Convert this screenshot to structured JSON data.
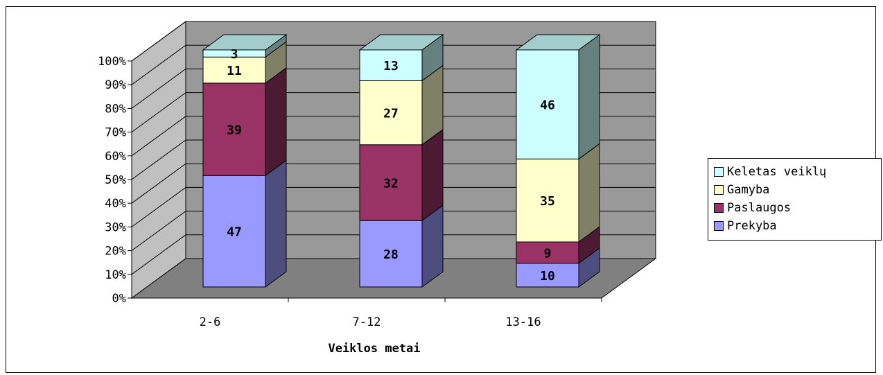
{
  "chart_data": {
    "type": "bar",
    "stacked": true,
    "percent_stacked": true,
    "three_d": true,
    "categories": [
      "2-6",
      "7-12",
      "13-16"
    ],
    "series": [
      {
        "name": "Prekyba",
        "values": [
          47,
          28,
          10
        ],
        "color": "#9999FF"
      },
      {
        "name": "Paslaugos",
        "values": [
          39,
          32,
          9
        ],
        "color": "#993366"
      },
      {
        "name": "Gamyba",
        "values": [
          11,
          27,
          35
        ],
        "color": "#FFFFCC"
      },
      {
        "name": "Keletas veiklų",
        "values": [
          3,
          13,
          46
        ],
        "color": "#CCFFFF"
      }
    ],
    "title": "",
    "xlabel": "Veiklos metai",
    "ylabel": "",
    "ylim": [
      0,
      100
    ],
    "yticks": [
      "0%",
      "10%",
      "20%",
      "30%",
      "40%",
      "50%",
      "60%",
      "70%",
      "80%",
      "90%",
      "100%"
    ],
    "grid": true,
    "legend_position": "right",
    "legend_order": [
      "Keletas veiklų",
      "Gamyba",
      "Paslaugos",
      "Prekyba"
    ]
  },
  "colors": {
    "back_wall": "#999999",
    "side_wall": "#c0c0c0",
    "floor": "#808080",
    "gridline": "#000000"
  }
}
